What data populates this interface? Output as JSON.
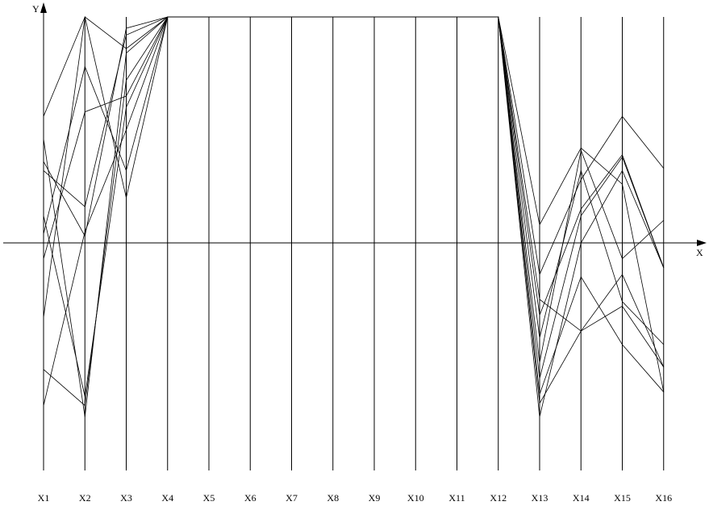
{
  "chart_data": {
    "type": "line",
    "title": "",
    "xlabel": "X",
    "ylabel": "Y",
    "categories": [
      "X1",
      "X2",
      "X3",
      "X4",
      "X5",
      "X6",
      "X7",
      "X8",
      "X9",
      "X10",
      "X11",
      "X12",
      "X13",
      "X14",
      "X15",
      "X16"
    ],
    "ylim": [
      -1,
      1
    ],
    "grid": false,
    "series": [
      {
        "values": [
          0.56,
          1.0,
          0.2,
          1,
          1,
          1,
          1,
          1,
          1,
          1,
          1,
          1,
          -0.14,
          0.28,
          0.56,
          0.33
        ]
      },
      {
        "values": [
          0.46,
          -0.77,
          0.84,
          1,
          1,
          1,
          1,
          1,
          1,
          1,
          1,
          1,
          -0.71,
          -0.39,
          -0.14,
          -0.55
        ]
      },
      {
        "values": [
          0.32,
          0.16,
          0.92,
          1,
          1,
          1,
          1,
          1,
          1,
          1,
          1,
          1,
          0.08,
          0.42,
          0.26,
          -0.66
        ]
      },
      {
        "values": [
          0.04,
          0.78,
          0.32,
          1,
          1,
          1,
          1,
          1,
          1,
          1,
          1,
          1,
          -0.32,
          0.15,
          0.39,
          -0.11
        ]
      },
      {
        "values": [
          -0.07,
          0.58,
          0.65,
          1,
          1,
          1,
          1,
          1,
          1,
          1,
          1,
          1,
          -0.42,
          0.32,
          -0.26,
          -0.45
        ]
      },
      {
        "values": [
          -0.33,
          1.0,
          0.86,
          1,
          1,
          1,
          1,
          1,
          1,
          1,
          1,
          1,
          -0.77,
          0.0,
          0.32,
          -0.11
        ]
      },
      {
        "values": [
          -0.56,
          -0.72,
          0.72,
          1,
          1,
          1,
          1,
          1,
          1,
          1,
          1,
          1,
          -0.25,
          -0.39,
          -0.28,
          -0.55
        ]
      },
      {
        "values": [
          -0.72,
          0.05,
          0.5,
          1,
          1,
          1,
          1,
          1,
          1,
          1,
          1,
          1,
          -0.53,
          0.41,
          -0.07,
          0.1
        ]
      },
      {
        "values": [
          0.36,
          0.03,
          0.95,
          1,
          1,
          1,
          1,
          1,
          1,
          1,
          1,
          1,
          -0.6,
          0.12,
          0.38,
          -0.11
        ]
      },
      {
        "values": [
          0.12,
          -0.68,
          0.6,
          1,
          1,
          1,
          1,
          1,
          1,
          1,
          1,
          1,
          -0.67,
          -0.15,
          -0.45,
          -0.66
        ]
      }
    ]
  }
}
